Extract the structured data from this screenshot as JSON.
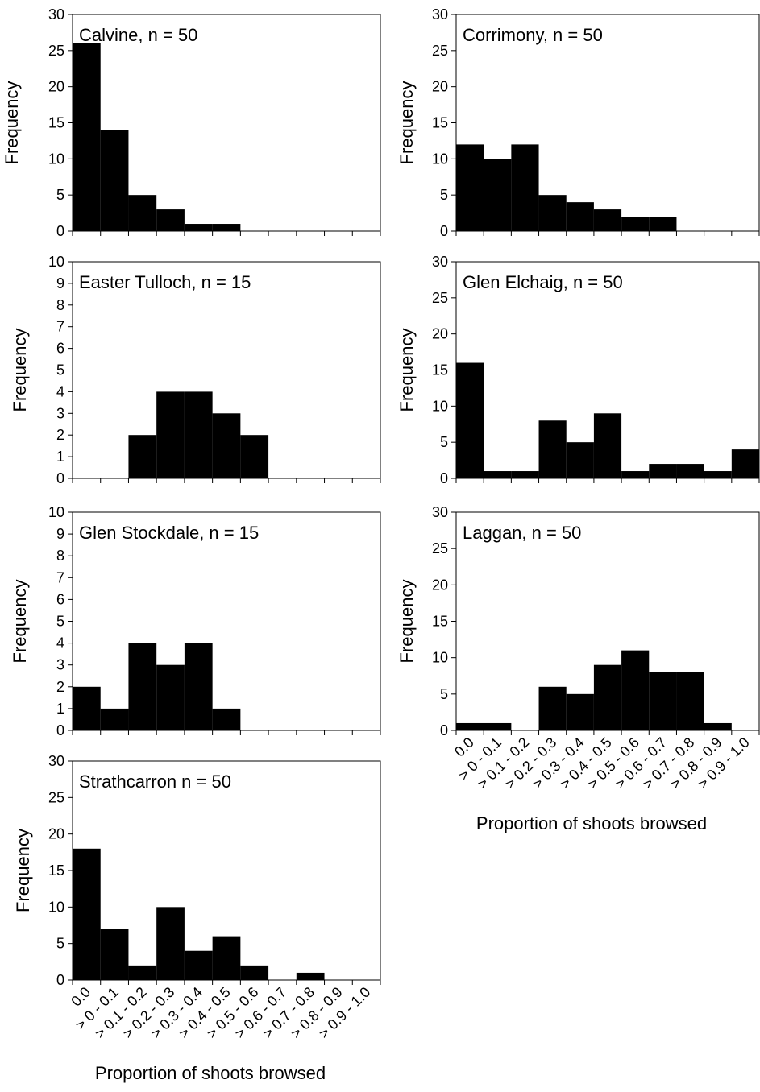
{
  "chart_data": [
    {
      "type": "bar",
      "title": "Calvine, n = 50",
      "ylabel": "Frequency",
      "color": "#000000",
      "categories": [
        null,
        null,
        null,
        null,
        null,
        null,
        null,
        null,
        null,
        null,
        null
      ],
      "values": [
        26,
        14,
        5,
        3,
        1,
        1,
        0,
        0,
        0,
        0,
        0
      ],
      "ylim": [
        0,
        30
      ],
      "yticks": [
        0,
        5,
        10,
        15,
        20,
        25,
        30
      ]
    },
    {
      "type": "bar",
      "title": "Corrimony, n = 50",
      "ylabel": "Frequency",
      "color": "#000000",
      "categories": [
        null,
        null,
        null,
        null,
        null,
        null,
        null,
        null,
        null,
        null,
        null
      ],
      "values": [
        12,
        10,
        12,
        5,
        4,
        3,
        2,
        2,
        0,
        0,
        0
      ],
      "ylim": [
        0,
        30
      ],
      "yticks": [
        0,
        5,
        10,
        15,
        20,
        25,
        30
      ]
    },
    {
      "type": "bar",
      "title": "Easter Tulloch, n = 15",
      "ylabel": "Frequency",
      "color": "#000000",
      "categories": [
        null,
        null,
        null,
        null,
        null,
        null,
        null,
        null,
        null,
        null,
        null
      ],
      "values": [
        0,
        0,
        2,
        4,
        4,
        3,
        2,
        0,
        0,
        0,
        0
      ],
      "ylim": [
        0,
        10
      ],
      "yticks": [
        0,
        1,
        2,
        3,
        4,
        5,
        6,
        7,
        8,
        9,
        10
      ]
    },
    {
      "type": "bar",
      "title": "Glen Elchaig, n = 50",
      "ylabel": "Frequency",
      "color": "#000000",
      "categories": [
        null,
        null,
        null,
        null,
        null,
        null,
        null,
        null,
        null,
        null,
        null
      ],
      "values": [
        16,
        1,
        1,
        8,
        5,
        9,
        1,
        2,
        2,
        1,
        4
      ],
      "ylim": [
        0,
        30
      ],
      "yticks": [
        0,
        5,
        10,
        15,
        20,
        25,
        30
      ]
    },
    {
      "type": "bar",
      "title": "Glen Stockdale, n = 15",
      "ylabel": "Frequency",
      "color": "#000000",
      "categories": [
        null,
        null,
        null,
        null,
        null,
        null,
        null,
        null,
        null,
        null,
        null
      ],
      "values": [
        2,
        1,
        4,
        3,
        4,
        1,
        0,
        0,
        0,
        0,
        0
      ],
      "ylim": [
        0,
        10
      ],
      "yticks": [
        0,
        1,
        2,
        3,
        4,
        5,
        6,
        7,
        8,
        9,
        10
      ]
    },
    {
      "type": "bar",
      "title": "Laggan, n = 50",
      "ylabel": "Frequency",
      "xlabel": "Proportion of shoots browsed",
      "color": "#000000",
      "categories": [
        "0.0",
        "> 0 - 0.1",
        "> 0.1 - 0.2",
        "> 0.2 - 0.3",
        "> 0.3 - 0.4",
        "> 0.4 - 0.5",
        "> 0.5 - 0.6",
        "> 0.6 - 0.7",
        "> 0.7 - 0.8",
        "> 0.8 - 0.9",
        "> 0.9 - 1.0"
      ],
      "values": [
        1,
        1,
        0,
        6,
        5,
        9,
        11,
        8,
        8,
        1,
        0
      ],
      "ylim": [
        0,
        30
      ],
      "yticks": [
        0,
        5,
        10,
        15,
        20,
        25,
        30
      ]
    },
    {
      "type": "bar",
      "title": "Strathcarron n = 50",
      "ylabel": "Frequency",
      "xlabel": "Proportion of shoots browsed",
      "color": "#000000",
      "categories": [
        "0.0",
        "> 0 - 0.1",
        "> 0.1 - 0.2",
        "> 0.2 - 0.3",
        "> 0.3 - 0.4",
        "> 0.4 - 0.5",
        "> 0.5 - 0.6",
        "> 0.6 - 0.7",
        "> 0.7 - 0.8",
        "> 0.8 - 0.9",
        "> 0.9 - 1.0"
      ],
      "values": [
        18,
        7,
        2,
        10,
        4,
        6,
        2,
        0,
        1,
        0,
        0
      ],
      "ylim": [
        0,
        30
      ],
      "yticks": [
        0,
        5,
        10,
        15,
        20,
        25,
        30
      ]
    }
  ]
}
